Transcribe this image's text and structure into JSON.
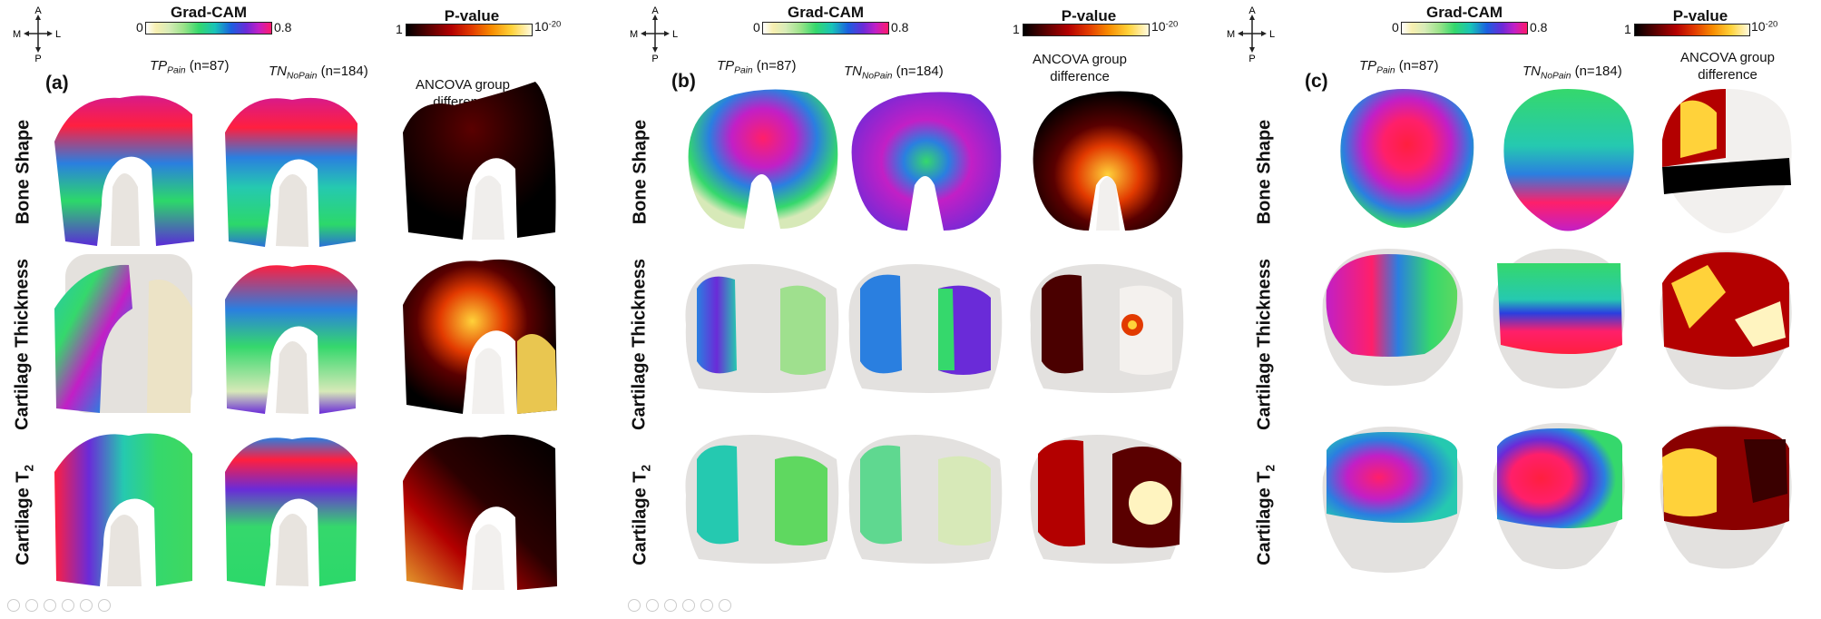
{
  "compass": {
    "up": "A",
    "down": "P",
    "left": "M",
    "right": "L"
  },
  "gradcam": {
    "title": "Grad-CAM",
    "min": "0",
    "max": "0.8"
  },
  "pvalue": {
    "title": "P-value",
    "min": "1",
    "max_base": "10",
    "max_exp": "-20"
  },
  "col1": {
    "main": "TP",
    "sub": "Pain",
    "count": "(n=87)"
  },
  "col2": {
    "main": "TN",
    "sub": "NoPain",
    "count": "(n=184)"
  },
  "col3": {
    "line1": "ANCOVA group",
    "line2": "difference"
  },
  "rows": {
    "r1": "Bone Shape",
    "r2": "Cartilage Thickness",
    "r3_main": "Cartilage T",
    "r3_sub": "2"
  },
  "panels": [
    {
      "letter": "(a)"
    },
    {
      "letter": "(b)"
    },
    {
      "letter": "(c)"
    }
  ],
  "colors": {
    "grad_low": "#ffffff",
    "grad_mid": "#35d86c",
    "grad_high": "#ff1a6a",
    "p_low": "#000000",
    "p_high": "#fffbe0"
  }
}
